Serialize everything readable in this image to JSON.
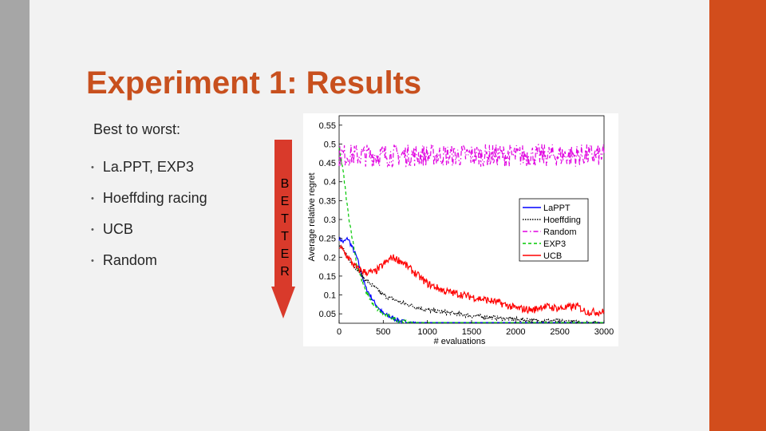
{
  "slide": {
    "title": "Experiment 1:  Results",
    "intro": "Best to worst:",
    "bullets": [
      "La.PPT, EXP3",
      "Hoeffding racing",
      "UCB",
      "Random"
    ],
    "arrow_letters": [
      "B",
      "E",
      "T",
      "T",
      "E",
      "R"
    ]
  },
  "colors": {
    "accent": "#c8501e",
    "right_bar": "#d24d1c",
    "left_bar": "#a6a6a6",
    "arrow": "#d93a2b"
  },
  "icons": {
    "bullet": "bullet-dot-icon",
    "arrow": "down-arrow-icon"
  },
  "chart_data": {
    "type": "line",
    "xlabel": "# evaluations",
    "ylabel": "Average relative regret",
    "xlim": [
      0,
      3000
    ],
    "ylim": [
      0.025,
      0.575
    ],
    "xticks": [
      "0",
      "500",
      "1000",
      "1500",
      "2000",
      "2500",
      "3000"
    ],
    "yticks": [
      "0.05",
      "0.1",
      "0.15",
      "0.2",
      "0.25",
      "0.3",
      "0.35",
      "0.4",
      "0.45",
      "0.5",
      "0.55"
    ],
    "legend_position": "right",
    "series": [
      {
        "name": "LaPPT",
        "color": "#0000ff",
        "dash": "",
        "x": [
          0,
          50,
          100,
          200,
          300,
          400,
          500,
          700,
          900,
          1100,
          1500,
          2000,
          3000
        ],
        "y": [
          0.25,
          0.24,
          0.25,
          0.2,
          0.12,
          0.08,
          0.05,
          0.03,
          0.022,
          0.02,
          0.018,
          0.017,
          0.016
        ]
      },
      {
        "name": "Hoeffding",
        "color": "#000000",
        "dash": "1.5,1.5",
        "x": [
          0,
          50,
          100,
          200,
          300,
          400,
          500,
          700,
          1000,
          1500,
          2000,
          2500,
          3000
        ],
        "y": [
          0.23,
          0.22,
          0.2,
          0.17,
          0.14,
          0.12,
          0.1,
          0.08,
          0.06,
          0.045,
          0.035,
          0.03,
          0.025
        ]
      },
      {
        "name": "Random",
        "color": "#e000e0",
        "dash": "6,3,1.5,3",
        "x": [
          0,
          3000
        ],
        "y": [
          0.47,
          0.47
        ]
      },
      {
        "name": "EXP3",
        "color": "#00c800",
        "dash": "4,3",
        "x": [
          0,
          50,
          100,
          150,
          200,
          300,
          400,
          500,
          700,
          900,
          1200,
          2000,
          3000
        ],
        "y": [
          0.49,
          0.42,
          0.32,
          0.25,
          0.18,
          0.11,
          0.07,
          0.05,
          0.03,
          0.022,
          0.018,
          0.016,
          0.015
        ]
      },
      {
        "name": "UCB",
        "color": "#ff0000",
        "dash": "",
        "x": [
          0,
          100,
          200,
          300,
          400,
          500,
          600,
          700,
          800,
          900,
          1000,
          1100,
          1200,
          1400,
          1600,
          1800,
          2000,
          2200,
          2300,
          2500,
          2700,
          2800,
          3000
        ],
        "y": [
          0.23,
          0.2,
          0.17,
          0.16,
          0.16,
          0.18,
          0.2,
          0.19,
          0.17,
          0.15,
          0.13,
          0.12,
          0.11,
          0.1,
          0.09,
          0.08,
          0.065,
          0.06,
          0.07,
          0.065,
          0.07,
          0.055,
          0.055
        ]
      }
    ]
  }
}
